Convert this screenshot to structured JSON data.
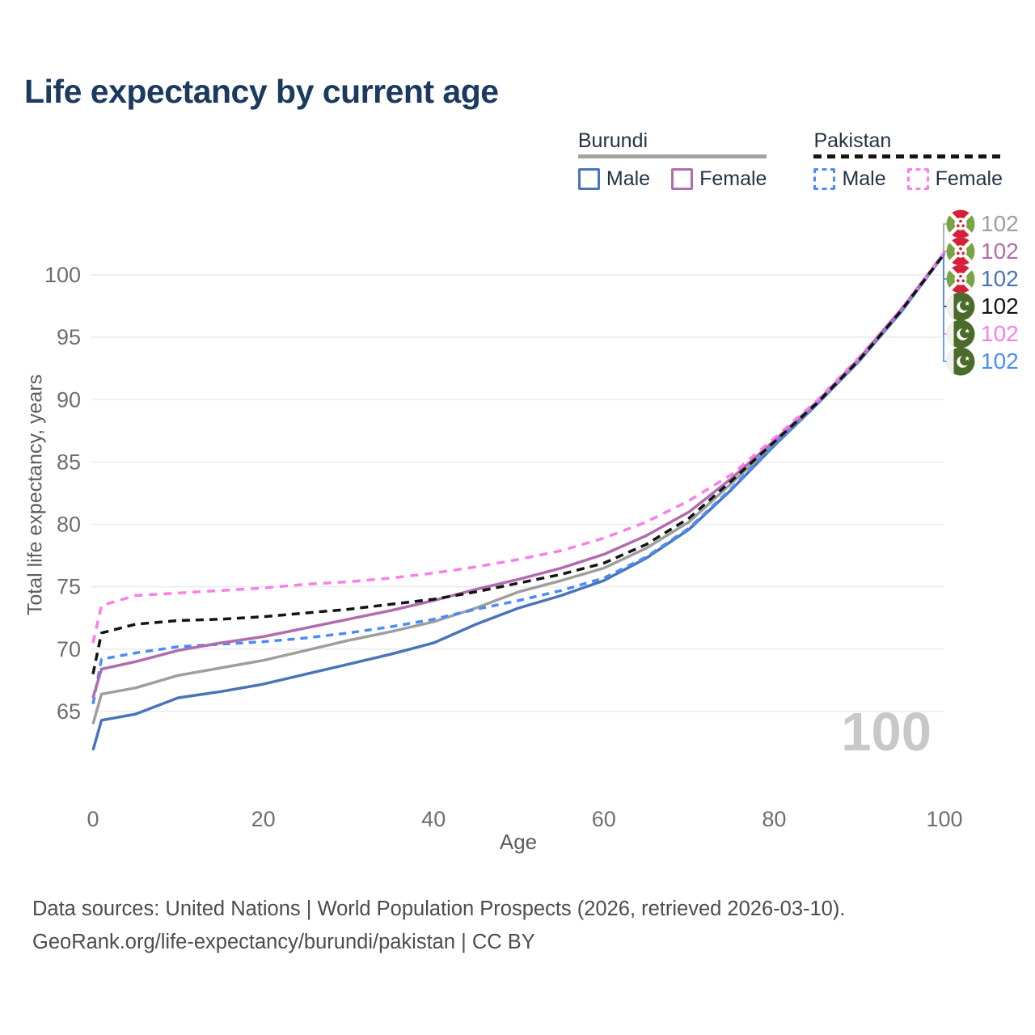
{
  "title": "Life expectancy by current age",
  "watermark": "100",
  "legend": {
    "groups": [
      {
        "name": "Burundi",
        "line_style": "solid",
        "line_color": "#a3a3a3",
        "items": [
          {
            "label": "Male",
            "color": "#4a74b9",
            "dashed": false
          },
          {
            "label": "Female",
            "color": "#b06cae",
            "dashed": false
          }
        ]
      },
      {
        "name": "Pakistan",
        "line_style": "dashed",
        "line_color": "#141414",
        "items": [
          {
            "label": "Male",
            "color": "#4a8cf7",
            "dashed": true
          },
          {
            "label": "Female",
            "color": "#fb7ee8",
            "dashed": true
          }
        ]
      }
    ]
  },
  "axes": {
    "x_label": "Age",
    "y_label": "Total life expectancy, years",
    "x_ticks": [
      0,
      20,
      40,
      60,
      80,
      100
    ],
    "y_ticks": [
      65,
      70,
      75,
      80,
      85,
      90,
      95,
      100
    ]
  },
  "footer": {
    "line1": "Data sources: United Nations | World Population Prospects (2026, retrieved 2026-03-10).",
    "line2": "GeoRank.org/life-expectancy/burundi/pakistan | CC BY"
  },
  "chart_data": {
    "type": "line",
    "title": "Life expectancy by current age",
    "xlabel": "Age",
    "ylabel": "Total life expectancy, years",
    "xlim": [
      0,
      100
    ],
    "ylim": [
      60,
      104.5
    ],
    "grid": "horizontal",
    "legend_position": "top-right",
    "x": [
      0,
      1,
      5,
      10,
      15,
      20,
      25,
      30,
      35,
      40,
      45,
      50,
      55,
      60,
      65,
      70,
      75,
      80,
      85,
      90,
      95,
      100
    ],
    "series": [
      {
        "name": "Burundi Both sexes",
        "country": "Burundi",
        "sex": "Both",
        "flag": "burundi",
        "color": "#9e9e9e",
        "dash": null,
        "end_label": "102",
        "values": [
          64.0,
          66.4,
          66.9,
          67.9,
          68.5,
          69.1,
          69.9,
          70.7,
          71.4,
          72.2,
          73.3,
          74.6,
          75.5,
          76.5,
          78.1,
          80.2,
          83.3,
          86.5,
          89.7,
          93.2,
          97.2,
          101.7
        ]
      },
      {
        "name": "Burundi Male",
        "country": "Burundi",
        "sex": "Male",
        "flag": "burundi",
        "color": "#4a74b9",
        "dash": null,
        "end_label": "102",
        "values": [
          61.9,
          64.3,
          64.8,
          66.1,
          66.6,
          67.2,
          68.0,
          68.8,
          69.6,
          70.5,
          72.0,
          73.3,
          74.3,
          75.5,
          77.3,
          79.6,
          82.8,
          86.3,
          89.6,
          93.1,
          97.1,
          101.7
        ]
      },
      {
        "name": "Burundi Female",
        "country": "Burundi",
        "sex": "Female",
        "flag": "burundi",
        "color": "#b06cae",
        "dash": null,
        "end_label": "102",
        "values": [
          66.1,
          68.4,
          69.0,
          69.9,
          70.5,
          71.0,
          71.7,
          72.4,
          73.1,
          73.9,
          74.8,
          75.6,
          76.5,
          77.6,
          79.1,
          81.0,
          83.7,
          86.7,
          89.8,
          93.3,
          97.3,
          101.8
        ]
      },
      {
        "name": "Pakistan Both sexes",
        "country": "Pakistan",
        "sex": "Both",
        "flag": "pakistan",
        "color": "#141414",
        "dash": [
          10,
          7
        ],
        "end_label": "102",
        "values": [
          68.0,
          71.3,
          72.0,
          72.3,
          72.4,
          72.6,
          72.9,
          73.2,
          73.6,
          74.0,
          74.6,
          75.3,
          76.0,
          76.9,
          78.4,
          80.5,
          83.5,
          86.6,
          89.7,
          93.2,
          97.2,
          101.7
        ]
      },
      {
        "name": "Pakistan Male",
        "country": "Pakistan",
        "sex": "Male",
        "flag": "pakistan",
        "color": "#4a8cf7",
        "dash": [
          9,
          7
        ],
        "end_label": "102",
        "values": [
          65.6,
          69.2,
          69.7,
          70.2,
          70.4,
          70.6,
          70.9,
          71.3,
          71.8,
          72.4,
          73.2,
          73.9,
          74.7,
          75.7,
          77.4,
          79.7,
          82.9,
          86.4,
          89.6,
          93.1,
          97.1,
          101.7
        ]
      },
      {
        "name": "Pakistan Female",
        "country": "Pakistan",
        "sex": "Female",
        "flag": "pakistan",
        "color": "#fb7ee8",
        "dash": [
          10,
          8
        ],
        "end_label": "102",
        "values": [
          70.5,
          73.5,
          74.3,
          74.5,
          74.7,
          74.9,
          75.2,
          75.4,
          75.7,
          76.1,
          76.6,
          77.2,
          77.9,
          78.9,
          80.2,
          81.9,
          84.0,
          86.9,
          89.9,
          93.4,
          97.3,
          101.8
        ]
      }
    ],
    "draw_order": [
      1,
      0,
      4,
      2,
      5,
      3
    ],
    "end_label_rows": [
      0,
      2,
      1,
      3,
      5,
      4
    ]
  }
}
